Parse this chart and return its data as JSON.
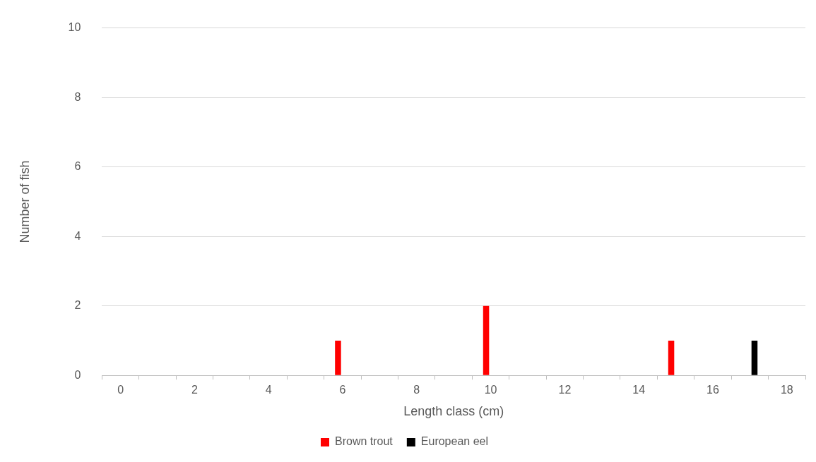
{
  "chart_data": {
    "type": "bar",
    "xlabel": "Length class (cm)",
    "ylabel": "Number of fish",
    "categories": [
      "0",
      null,
      "2",
      null,
      "4",
      null,
      "6",
      null,
      "8",
      null,
      "10",
      null,
      "12",
      null,
      "14",
      null,
      "16",
      null,
      "18"
    ],
    "series": [
      {
        "name": "Brown trout",
        "color": "#ff0000",
        "values": [
          0,
          0,
          0,
          0,
          0,
          0,
          1,
          0,
          0,
          0,
          2,
          0,
          0,
          0,
          0,
          1,
          0,
          0,
          0
        ]
      },
      {
        "name": "European eel",
        "color": "#000000",
        "values": [
          0,
          0,
          0,
          0,
          0,
          0,
          0,
          0,
          0,
          0,
          0,
          0,
          0,
          0,
          0,
          0,
          0,
          1,
          0
        ]
      }
    ],
    "ylim": [
      0,
      10
    ],
    "yticks": [
      0,
      2,
      4,
      6,
      8,
      10
    ],
    "grid": "y",
    "legend": "bottom"
  }
}
